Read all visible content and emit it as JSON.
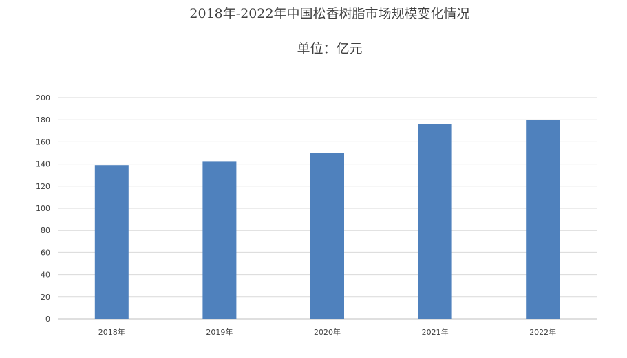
{
  "chart_data": {
    "type": "bar",
    "title": "2018年-2022年中国松香树脂市场规模变化情况",
    "subtitle": "单位：亿元",
    "categories": [
      "2018年",
      "2019年",
      "2020年",
      "2021年",
      "2022年"
    ],
    "values": [
      139,
      142,
      150,
      176,
      180
    ],
    "ylim": [
      0,
      200
    ],
    "y_ticks": [
      0,
      20,
      40,
      60,
      80,
      100,
      120,
      140,
      160,
      180,
      200
    ],
    "grid": true,
    "legend": "none",
    "colors": {
      "bar": "#4f81bd",
      "grid": "#d9d9d9",
      "axis_text": "#404040"
    }
  }
}
